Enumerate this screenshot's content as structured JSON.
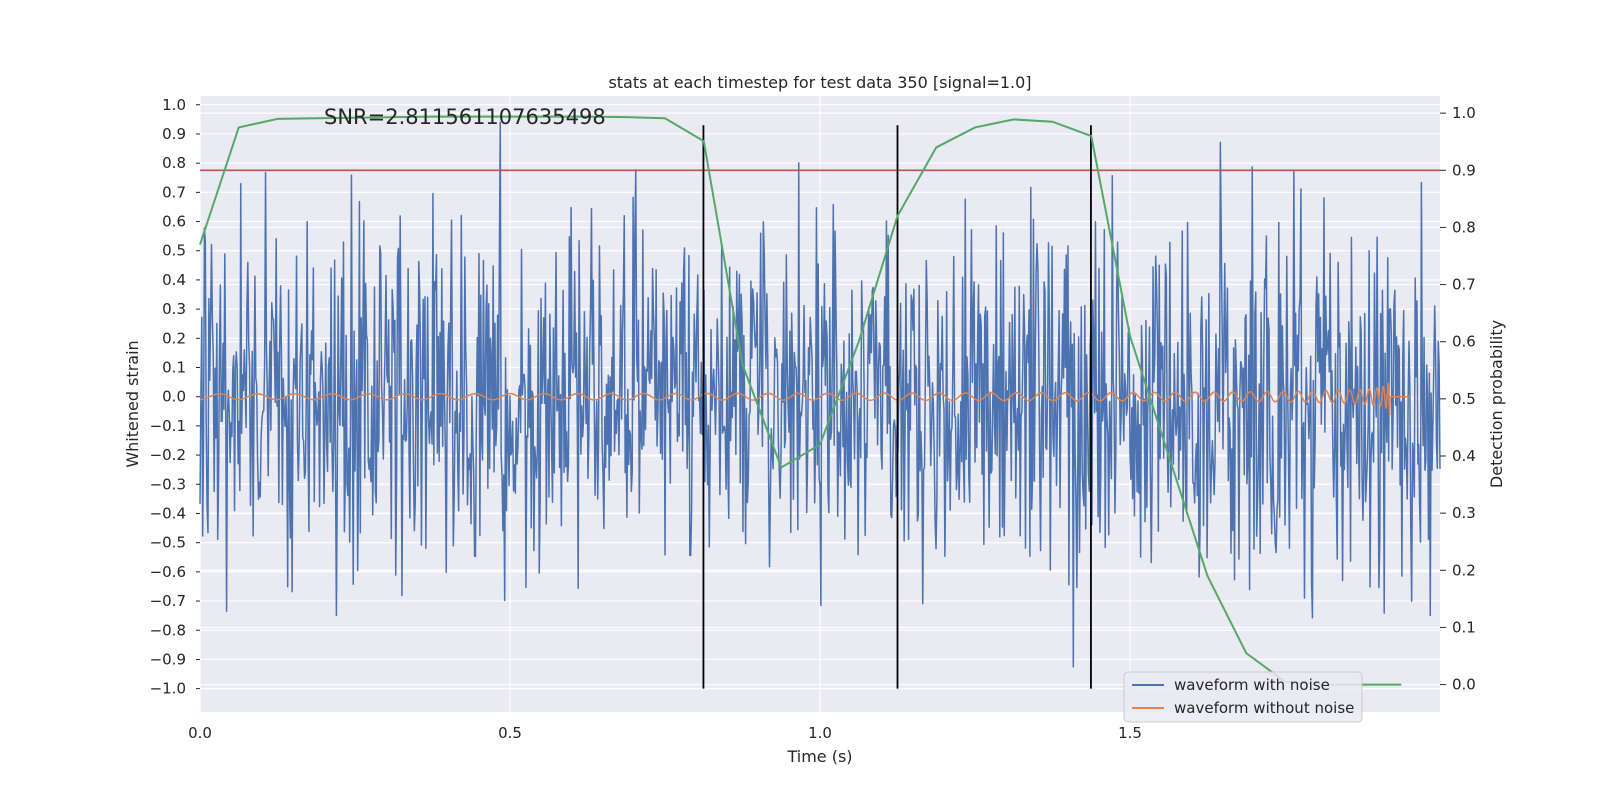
{
  "chart_data": {
    "type": "line",
    "title": "stats at each timestep for test data 350 [signal=1.0]",
    "xlabel": "Time (s)",
    "ylabel_left": "Whitened strain",
    "ylabel_right": "Detection probability",
    "xlim": [
      0.0,
      2.0
    ],
    "ylim_left": [
      -1.08,
      1.03
    ],
    "ylim_right": [
      -0.048,
      1.03
    ],
    "x_ticks": [
      0.0,
      0.5,
      1.0,
      1.5
    ],
    "x_tick_labels": [
      "0.0",
      "0.5",
      "1.0",
      "1.5"
    ],
    "y_left_ticks": [
      1.0,
      0.9,
      0.8,
      0.7,
      0.6,
      0.5,
      0.4,
      0.3,
      0.2,
      0.1,
      0.0,
      -0.1,
      -0.2,
      -0.3,
      -0.4,
      -0.5,
      -0.6,
      -0.7,
      -0.8,
      -0.9,
      -1.0
    ],
    "y_left_tick_labels": [
      "1.0",
      "0.9",
      "0.8",
      "0.7",
      "0.6",
      "0.5",
      "0.4",
      "0.3",
      "0.2",
      "0.1",
      "0.0",
      "−0.1",
      "−0.2",
      "−0.3",
      "−0.4",
      "−0.5",
      "−0.6",
      "−0.7",
      "−0.8",
      "−0.9",
      "−1.0"
    ],
    "y_right_ticks": [
      1.0,
      0.9,
      0.8,
      0.7,
      0.6,
      0.5,
      0.4,
      0.3,
      0.2,
      0.1,
      0.0
    ],
    "y_right_tick_labels": [
      "1.0",
      "0.9",
      "0.8",
      "0.7",
      "0.6",
      "0.5",
      "0.4",
      "0.3",
      "0.2",
      "0.1",
      "0.0"
    ],
    "annotation": "SNR=2.811561107635498",
    "threshold": {
      "axis": "right",
      "value": 0.9,
      "color": "#c44e52"
    },
    "vertical_markers": {
      "x": [
        0.812,
        1.125,
        1.437
      ],
      "left_range": [
        -1.0,
        0.93
      ],
      "color": "#000000"
    },
    "series": [
      {
        "name": "waveform with noise",
        "axis": "left",
        "color": "#4c72b0",
        "kind": "noise",
        "x_range": [
          0.0,
          2.0
        ],
        "amplitude_range": [
          -1.0,
          0.94
        ]
      },
      {
        "name": "waveform without noise",
        "axis": "left",
        "color": "#dd8452",
        "kind": "chirp",
        "x_range": [
          0.0,
          1.95
        ],
        "merger_time": 1.92
      },
      {
        "name": "detection probability",
        "axis": "right",
        "color": "#55a868",
        "x": [
          0.0,
          0.0625,
          0.125,
          0.1875,
          0.25,
          0.3125,
          0.375,
          0.4375,
          0.5,
          0.5625,
          0.625,
          0.6875,
          0.75,
          0.8125,
          0.875,
          0.9375,
          1.0,
          1.0625,
          1.125,
          1.1875,
          1.25,
          1.3125,
          1.375,
          1.4375,
          1.5,
          1.5625,
          1.625,
          1.6875,
          1.75,
          1.8125,
          1.875,
          1.9375
        ],
        "values": [
          0.77,
          0.975,
          0.99,
          0.991,
          0.992,
          0.993,
          0.994,
          0.994,
          0.994,
          0.994,
          0.994,
          0.993,
          0.991,
          0.951,
          0.56,
          0.38,
          0.42,
          0.6,
          0.82,
          0.94,
          0.975,
          0.989,
          0.985,
          0.96,
          0.61,
          0.4,
          0.19,
          0.055,
          0.005,
          0.0,
          0.0,
          0.0
        ]
      }
    ],
    "legend": {
      "position": "lower-right",
      "entries": [
        {
          "label": "waveform with noise",
          "color": "#4c72b0"
        },
        {
          "label": "waveform without noise",
          "color": "#dd8452"
        }
      ]
    }
  }
}
